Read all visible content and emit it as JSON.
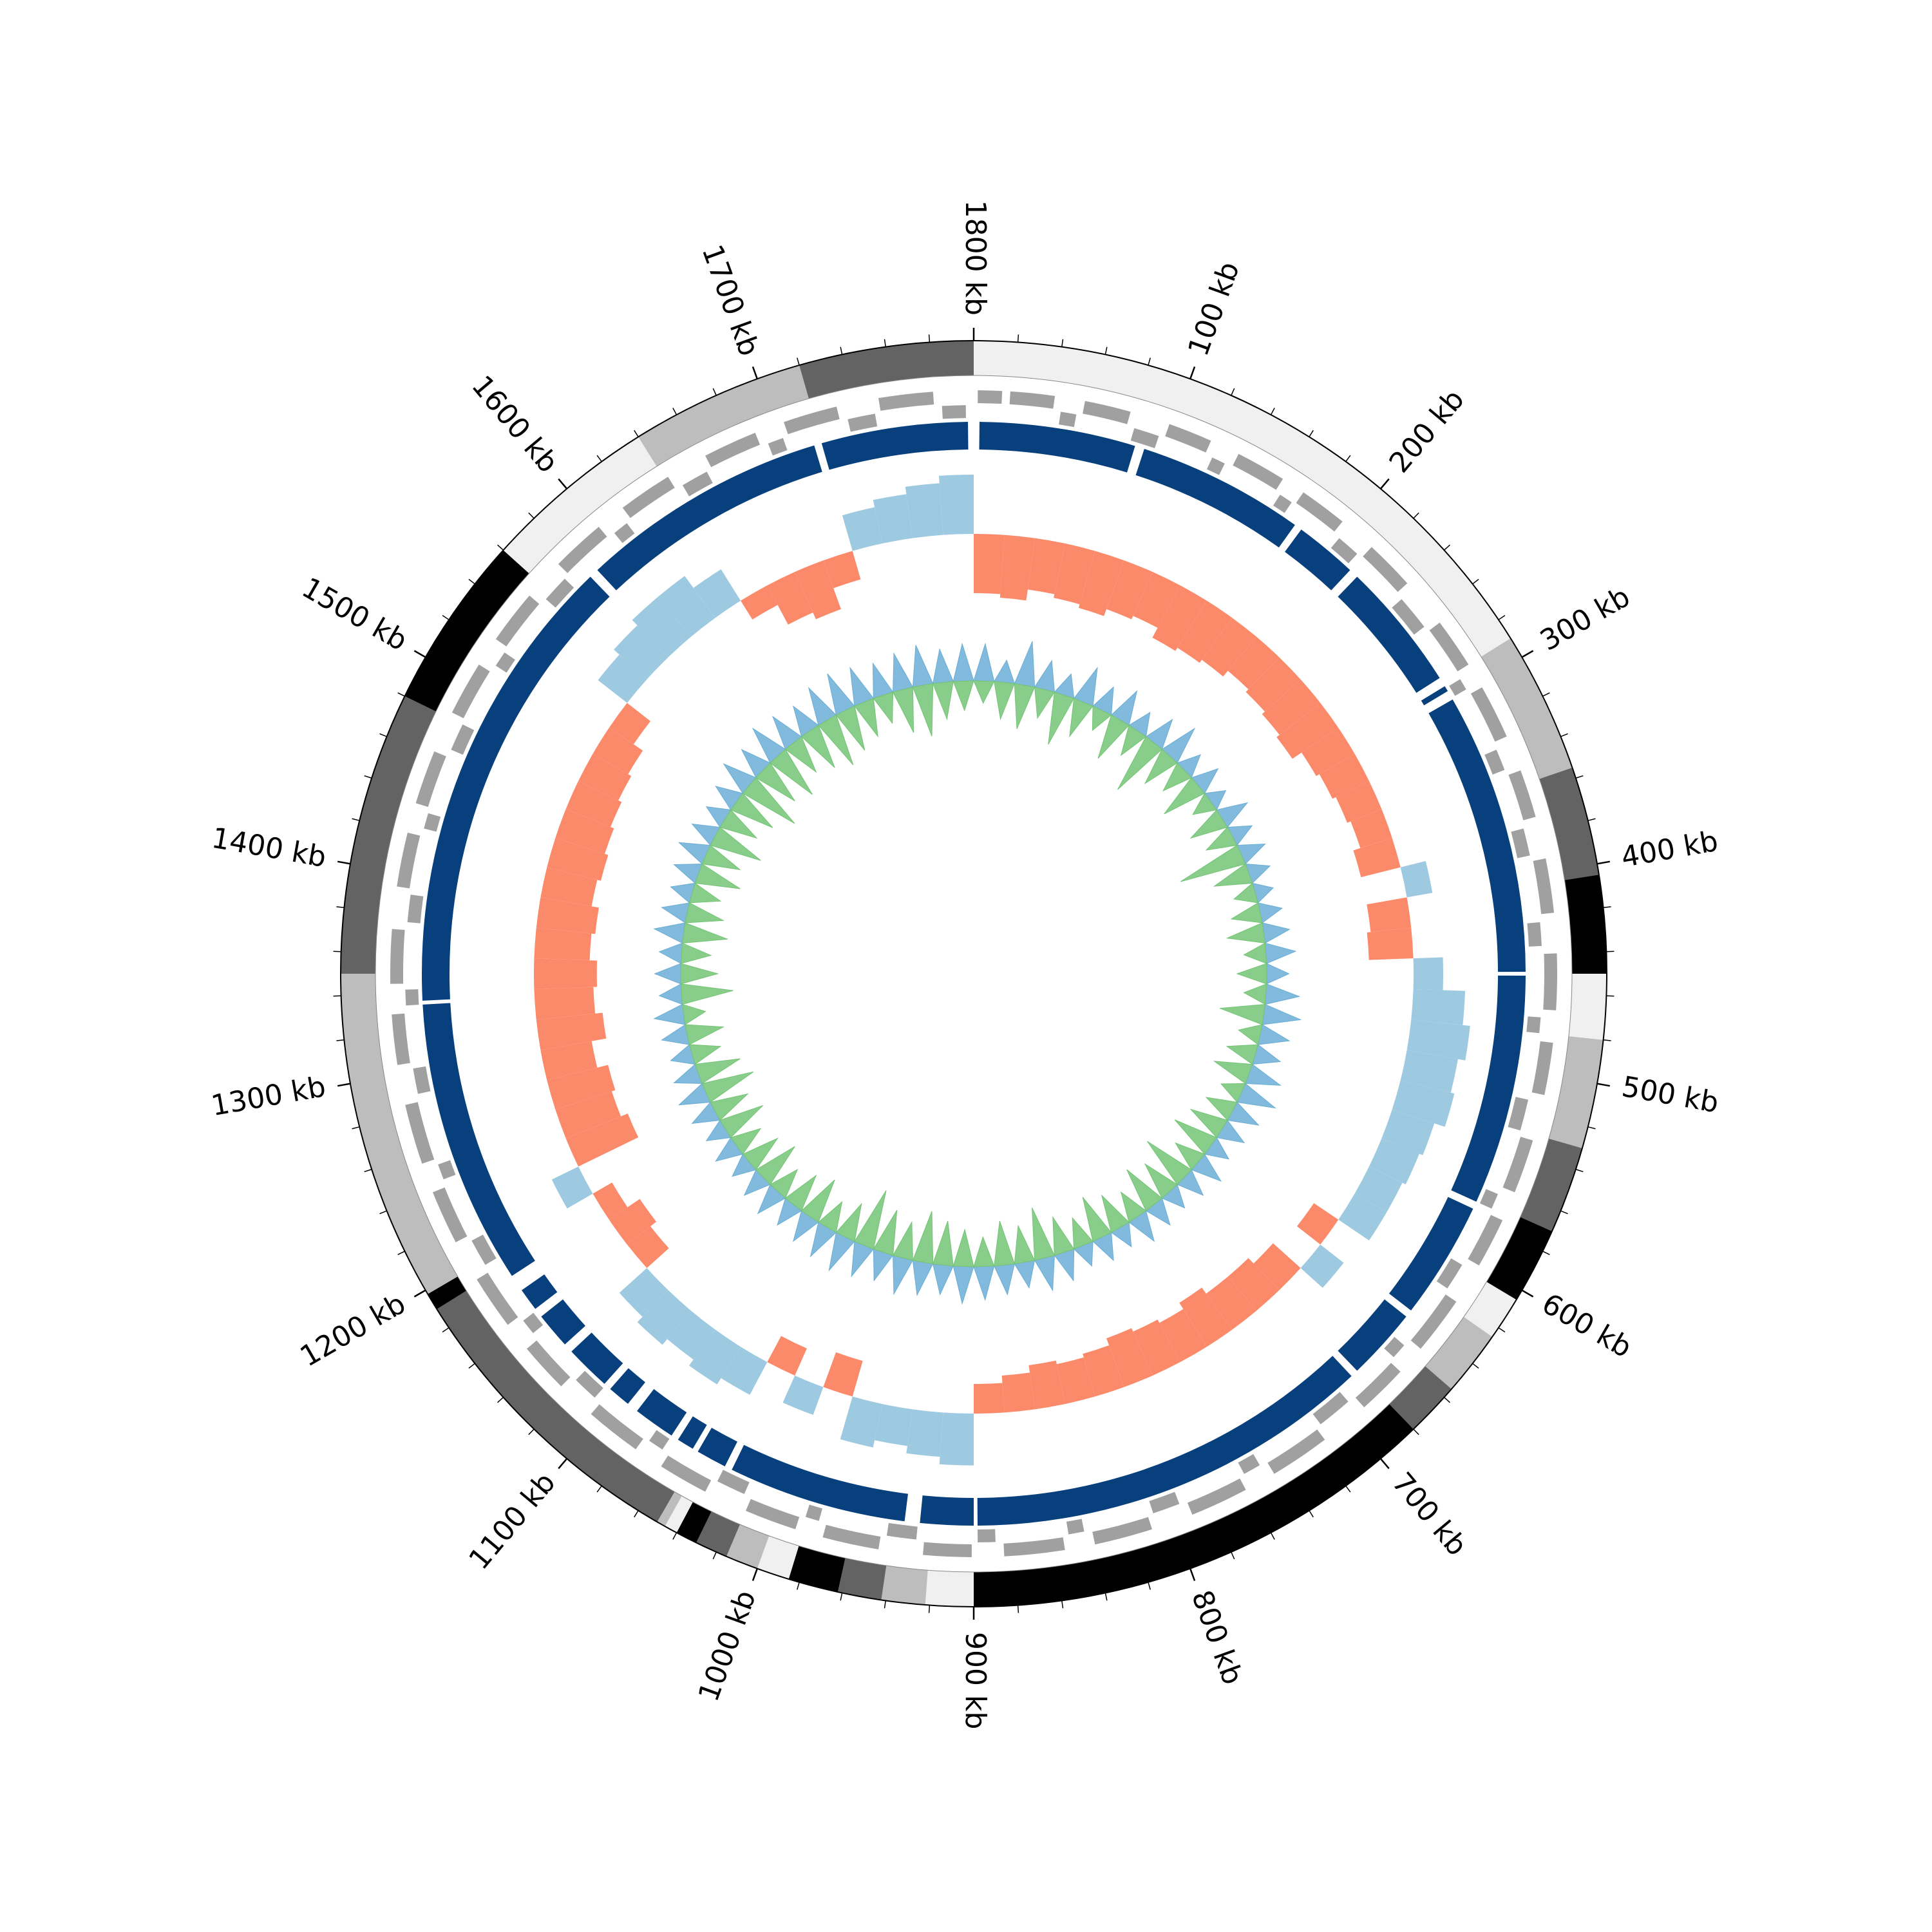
{
  "chart_data": {
    "type": "circos",
    "xlim": [
      0,
      1800
    ],
    "xticks": [
      {
        "value": 100,
        "label": "100 kb"
      },
      {
        "value": 200,
        "label": "200 kb"
      },
      {
        "value": 300,
        "label": "300 kb"
      },
      {
        "value": 400,
        "label": "400 kb"
      },
      {
        "value": 500,
        "label": "500 kb"
      },
      {
        "value": 600,
        "label": "600 kb"
      },
      {
        "value": 700,
        "label": "700 kb"
      },
      {
        "value": 800,
        "label": "800 kb"
      },
      {
        "value": 900,
        "label": "900 kb"
      },
      {
        "value": 1000,
        "label": "1000 kb"
      },
      {
        "value": 1100,
        "label": "1100 kb"
      },
      {
        "value": 1200,
        "label": "1200 kb"
      },
      {
        "value": 1300,
        "label": "1300 kb"
      },
      {
        "value": 1400,
        "label": "1400 kb"
      },
      {
        "value": 1500,
        "label": "1500 kb"
      },
      {
        "value": 1600,
        "label": "1600 kb"
      },
      {
        "value": 1700,
        "label": "1700 kb"
      },
      {
        "value": 1800,
        "label": "1800 kb"
      }
    ],
    "minor_tick_step": 20,
    "bands": [
      {
        "start": 0,
        "end": 290,
        "color": "#f0f0f0"
      },
      {
        "start": 290,
        "end": 355,
        "color": "#bdbdbd"
      },
      {
        "start": 355,
        "end": 405,
        "color": "#636363"
      },
      {
        "start": 405,
        "end": 450,
        "color": "#000000"
      },
      {
        "start": 450,
        "end": 480,
        "color": "#f0f0f0"
      },
      {
        "start": 480,
        "end": 530,
        "color": "#bdbdbd"
      },
      {
        "start": 530,
        "end": 570,
        "color": "#636363"
      },
      {
        "start": 570,
        "end": 605,
        "color": "#000000"
      },
      {
        "start": 605,
        "end": 625,
        "color": "#f0f0f0"
      },
      {
        "start": 625,
        "end": 655,
        "color": "#bdbdbd"
      },
      {
        "start": 655,
        "end": 680,
        "color": "#636363"
      },
      {
        "start": 680,
        "end": 900,
        "color": "#000000"
      },
      {
        "start": 900,
        "end": 922,
        "color": "#f0f0f0"
      },
      {
        "start": 922,
        "end": 942,
        "color": "#bdbdbd"
      },
      {
        "start": 942,
        "end": 962,
        "color": "#636363"
      },
      {
        "start": 962,
        "end": 985,
        "color": "#000000"
      },
      {
        "start": 985,
        "end": 1000,
        "color": "#f0f0f0"
      },
      {
        "start": 1000,
        "end": 1015,
        "color": "#bdbdbd"
      },
      {
        "start": 1015,
        "end": 1030,
        "color": "#636363"
      },
      {
        "start": 1030,
        "end": 1040,
        "color": "#000000"
      },
      {
        "start": 1040,
        "end": 1046,
        "color": "#f0f0f0"
      },
      {
        "start": 1046,
        "end": 1050,
        "color": "#bdbdbd"
      },
      {
        "start": 1050,
        "end": 1190,
        "color": "#636363"
      },
      {
        "start": 1190,
        "end": 1198,
        "color": "#000000"
      },
      {
        "start": 1198,
        "end": 1350,
        "color": "#bdbdbd"
      },
      {
        "start": 1350,
        "end": 1480,
        "color": "#636363"
      },
      {
        "start": 1480,
        "end": 1560,
        "color": "#000000"
      },
      {
        "start": 1560,
        "end": 1640,
        "color": "#f0f0f0"
      },
      {
        "start": 1640,
        "end": 1720,
        "color": "#bdbdbd"
      },
      {
        "start": 1720,
        "end": 1800,
        "color": "#636363"
      }
    ],
    "genes": {
      "color": "#a0a0a0",
      "items": [
        [
          2,
          14,
          1
        ],
        [
          18,
          40,
          1
        ],
        [
          44,
          52,
          -1
        ],
        [
          55,
          78,
          1
        ],
        [
          82,
          95,
          -1
        ],
        [
          98,
          120,
          1
        ],
        [
          124,
          131,
          -1
        ],
        [
          135,
          160,
          1
        ],
        [
          163,
          170,
          -1
        ],
        [
          172,
          196,
          1
        ],
        [
          200,
          212,
          -1
        ],
        [
          215,
          240,
          1
        ],
        [
          244,
          262,
          -1
        ],
        [
          265,
          290,
          1
        ],
        [
          294,
          300,
          -1
        ],
        [
          303,
          330,
          1
        ],
        [
          334,
          345,
          -1
        ],
        [
          348,
          372,
          1
        ],
        [
          376,
          390,
          -1
        ],
        [
          393,
          420,
          1
        ],
        [
          424,
          436,
          -1
        ],
        [
          440,
          468,
          1
        ],
        [
          472,
          480,
          -1
        ],
        [
          484,
          510,
          1
        ],
        [
          514,
          530,
          -1
        ],
        [
          533,
          560,
          1
        ],
        [
          564,
          572,
          -1
        ],
        [
          575,
          600,
          1
        ],
        [
          604,
          618,
          -1
        ],
        [
          621,
          650,
          1
        ],
        [
          654,
          662,
          -1
        ],
        [
          665,
          690,
          1
        ],
        [
          694,
          712,
          -1
        ],
        [
          715,
          745,
          1
        ],
        [
          749,
          758,
          -1
        ],
        [
          761,
          790,
          1
        ],
        [
          794,
          808,
          -1
        ],
        [
          811,
          840,
          1
        ],
        [
          844,
          852,
          -1
        ],
        [
          855,
          885,
          1
        ],
        [
          889,
          898,
          -1
        ],
        [
          901,
          925,
          1
        ],
        [
          929,
          944,
          -1
        ],
        [
          947,
          975,
          1
        ],
        [
          979,
          986,
          -1
        ],
        [
          989,
          1015,
          1
        ],
        [
          1019,
          1034,
          -1
        ],
        [
          1037,
          1062,
          1
        ],
        [
          1066,
          1074,
          -1
        ],
        [
          1077,
          1105,
          1
        ],
        [
          1109,
          1122,
          -1
        ],
        [
          1125,
          1150,
          1
        ],
        [
          1154,
          1162,
          -1
        ],
        [
          1165,
          1192,
          1
        ],
        [
          1196,
          1210,
          -1
        ],
        [
          1213,
          1240,
          1
        ],
        [
          1244,
          1252,
          -1
        ],
        [
          1255,
          1285,
          1
        ],
        [
          1289,
          1302,
          -1
        ],
        [
          1305,
          1330,
          1
        ],
        [
          1334,
          1342,
          -1
        ],
        [
          1345,
          1372,
          1
        ],
        [
          1376,
          1390,
          -1
        ],
        [
          1393,
          1420,
          1
        ],
        [
          1424,
          1432,
          -1
        ],
        [
          1435,
          1462,
          1
        ],
        [
          1466,
          1480,
          -1
        ],
        [
          1483,
          1510,
          1
        ],
        [
          1514,
          1522,
          -1
        ],
        [
          1525,
          1552,
          1
        ],
        [
          1556,
          1570,
          -1
        ],
        [
          1573,
          1600,
          1
        ],
        [
          1604,
          1612,
          -1
        ],
        [
          1615,
          1642,
          1
        ],
        [
          1646,
          1660,
          -1
        ],
        [
          1663,
          1690,
          1
        ],
        [
          1694,
          1702,
          -1
        ],
        [
          1705,
          1732,
          1
        ],
        [
          1736,
          1750,
          -1
        ],
        [
          1753,
          1780,
          1
        ],
        [
          1784,
          1796,
          -1
        ]
      ]
    },
    "contigs": {
      "color": "#08407e",
      "segments": [
        [
          3,
          85
        ],
        [
          90,
          178
        ],
        [
          182,
          215
        ],
        [
          220,
          288
        ],
        [
          293,
          296
        ],
        [
          301,
          449
        ],
        [
          451,
          572
        ],
        [
          576,
          638
        ],
        [
          642,
          680
        ],
        [
          684,
          898
        ],
        [
          900,
          928
        ],
        [
          936,
          1030
        ],
        [
          1034,
          1050
        ],
        [
          1053,
          1062
        ],
        [
          1066,
          1088
        ],
        [
          1094,
          1106
        ],
        [
          1110,
          1134
        ],
        [
          1139,
          1158
        ],
        [
          1163,
          1175
        ],
        [
          1184,
          1334
        ],
        [
          1336,
          1580
        ],
        [
          1585,
          1716
        ],
        [
          1720,
          1797
        ]
      ]
    },
    "x": [
      0,
      20,
      40,
      60,
      80,
      100,
      120,
      140,
      160,
      180,
      200,
      220,
      240,
      260,
      280,
      300,
      320,
      340,
      360,
      380,
      400,
      420,
      440,
      460,
      480,
      500,
      520,
      540,
      560,
      580,
      600,
      620,
      640,
      660,
      680,
      700,
      720,
      740,
      760,
      780,
      800,
      820,
      840,
      860,
      880,
      900,
      920,
      940,
      960,
      980,
      1000,
      1020,
      1040,
      1060,
      1080,
      1100,
      1120,
      1140,
      1160,
      1180,
      1200,
      1220,
      1240,
      1260,
      1280,
      1300,
      1320,
      1340,
      1360,
      1380,
      1400,
      1420,
      1440,
      1460,
      1480,
      1500,
      1520,
      1540,
      1560,
      1580,
      1600,
      1620,
      1640,
      1660,
      1680,
      1700,
      1720,
      1740,
      1760,
      1780
    ],
    "bin_width": 20,
    "gc_skew": {
      "positive_color": "#fb8a6a",
      "negative_color": "#9ecae1",
      "ylim": [
        -1,
        1
      ],
      "values": [
        0.8,
        0.85,
        0.7,
        0.75,
        0.8,
        0.7,
        0.65,
        0.8,
        0.75,
        0.7,
        0.6,
        0.65,
        0.7,
        0.75,
        0.6,
        0.55,
        0.5,
        0.45,
        0.55,
        -0.35,
        0.55,
        0.6,
        -0.4,
        -0.7,
        -0.8,
        -0.7,
        -0.75,
        -0.6,
        -0.55,
        -0.5,
        -0.5,
        0.4,
        -0.4,
        0.5,
        0.6,
        0.6,
        0.7,
        0.6,
        0.65,
        0.7,
        0.6,
        0.55,
        0.6,
        0.5,
        0.4,
        -0.7,
        -0.6,
        -0.5,
        -0.6,
        0.5,
        -0.4,
        0.4,
        -0.5,
        -0.6,
        -0.5,
        -0.6,
        -0.5,
        0.4,
        0.5,
        0.3,
        -0.4,
        0.9,
        0.8,
        0.85,
        0.7,
        0.9,
        0.8,
        0.85,
        0.75,
        0.8,
        0.7,
        0.75,
        0.7,
        0.65,
        0.6,
        0.55,
        0.4,
        -0.5,
        -0.6,
        -0.7,
        -0.7,
        -0.5,
        0.3,
        0.6,
        0.7,
        0.4,
        -0.5,
        -0.6,
        -0.7,
        -0.8
      ]
    },
    "inner": {
      "ylim": [
        0,
        1
      ],
      "series": [
        {
          "color": "#6baed6",
          "direction": "outward",
          "values": [
            0.5,
            0.3,
            0.6,
            0.4,
            0.3,
            0.5,
            0.35,
            0.45,
            0.3,
            0.4,
            0.5,
            0.3,
            0.35,
            0.25,
            0.4,
            0.3,
            0.35,
            0.3,
            0.25,
            0.3,
            0.35,
            0.4,
            0.3,
            0.45,
            0.5,
            0.4,
            0.35,
            0.45,
            0.5,
            0.4,
            0.35,
            0.3,
            0.4,
            0.35,
            0.3,
            0.35,
            0.4,
            0.3,
            0.35,
            0.3,
            0.4,
            0.45,
            0.35,
            0.4,
            0.45,
            0.5,
            0.4,
            0.45,
            0.5,
            0.4,
            0.45,
            0.5,
            0.45,
            0.4,
            0.35,
            0.4,
            0.35,
            0.3,
            0.35,
            0.3,
            0.35,
            0.4,
            0.35,
            0.3,
            0.35,
            0.4,
            0.3,
            0.35,
            0.3,
            0.4,
            0.35,
            0.3,
            0.35,
            0.4,
            0.35,
            0.3,
            0.35,
            0.45,
            0.4,
            0.5,
            0.45,
            0.4,
            0.5,
            0.55,
            0.5,
            0.45,
            0.5,
            0.55,
            0.45,
            0.5
          ]
        },
        {
          "color": "#74c476",
          "direction": "inward",
          "values": [
            0.3,
            0.5,
            0.6,
            0.4,
            0.7,
            0.5,
            0.3,
            0.6,
            0.4,
            0.8,
            0.5,
            0.4,
            0.6,
            0.3,
            0.5,
            0.4,
            0.9,
            0.5,
            0.3,
            0.4,
            0.5,
            0.3,
            0.4,
            0.3,
            0.6,
            0.3,
            0.4,
            0.5,
            0.3,
            0.4,
            0.5,
            0.6,
            0.4,
            0.7,
            0.5,
            0.6,
            0.4,
            0.5,
            0.6,
            0.4,
            0.5,
            0.7,
            0.5,
            0.6,
            0.4,
            0.5,
            0.6,
            0.7,
            0.5,
            0.6,
            0.8,
            0.5,
            0.4,
            0.6,
            0.5,
            0.4,
            0.6,
            0.5,
            0.4,
            0.6,
            0.5,
            0.7,
            0.6,
            0.4,
            0.5,
            0.3,
            0.7,
            0.5,
            0.4,
            0.6,
            0.5,
            0.4,
            0.6,
            0.5,
            0.7,
            0.5,
            0.6,
            0.8,
            0.6,
            0.7,
            0.5,
            0.6,
            0.7,
            0.6,
            0.5,
            0.4,
            0.6,
            0.7,
            0.5,
            0.4
          ]
        }
      ]
    }
  }
}
